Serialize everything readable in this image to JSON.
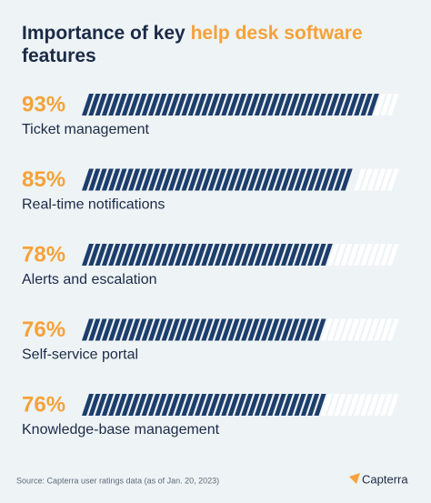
{
  "chart_data": {
    "type": "bar",
    "title": [
      "Importance of key",
      "help desk software",
      "features"
    ],
    "categories": [
      "Ticket management",
      "Real-time notifications",
      "Alerts and escalation",
      "Self-service portal",
      "Knowledge-base management"
    ],
    "values": [
      93,
      85,
      78,
      76,
      76
    ],
    "value_labels": [
      "93%",
      "85%",
      "78%",
      "76%",
      "76%"
    ],
    "xlim": [
      0,
      100
    ],
    "color": "#1d3e6c",
    "label_color": "#f5a23a",
    "source": "Source: Capterra user ratings data (as of Jan. 20, 2023)",
    "brand": "Capterra"
  }
}
